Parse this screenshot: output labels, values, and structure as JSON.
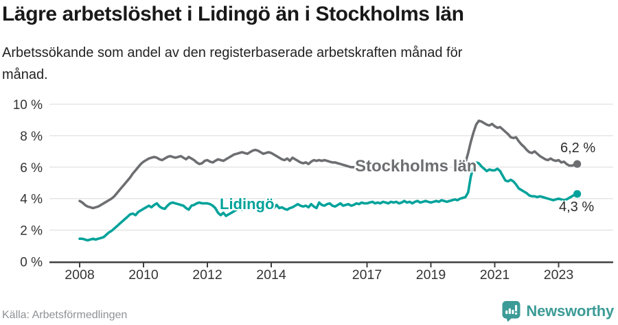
{
  "header": {
    "title": "Lägre arbetslöshet i Lidingö än i Stockholms län",
    "subtitle_line1": "Arbetssökande som andel av den registerbaserade arbetskraften månad för",
    "subtitle_line2": "månad."
  },
  "footer": {
    "source": "Källa: Arbetsförmedlingen",
    "brand": "Newsworthy"
  },
  "colors": {
    "stockholm_line": "#6d6e71",
    "lidingo_line": "#00a29a",
    "gridline": "#d9d9d9",
    "axis": "#3f3f41",
    "tick_text": "#333333",
    "end_label_text": "#2b2b2b",
    "source_text": "#8f9194",
    "brand_teal": "#3c9b96",
    "background": "#ffffff"
  },
  "chart_data": {
    "type": "line",
    "title": "Lägre arbetslöshet i Lidingö än i Stockholms län",
    "subtitle": "Arbetssökande som andel av den registerbaserade arbetskraften månad för månad.",
    "x_unit": "month",
    "x_start": "2008-01",
    "x_end": "2023-08",
    "ylim": [
      0,
      10.4
    ],
    "grid": true,
    "legend_position": "inline-labels",
    "y_ticks": [
      {
        "value": 0,
        "label": "0 %"
      },
      {
        "value": 2,
        "label": "2 %"
      },
      {
        "value": 4,
        "label": "4 %"
      },
      {
        "value": 6,
        "label": "6 %"
      },
      {
        "value": 8,
        "label": "8 %"
      },
      {
        "value": 10,
        "label": "10 %"
      }
    ],
    "x_ticks": [
      {
        "year": 2008,
        "label": "2008"
      },
      {
        "year": 2010,
        "label": "2010"
      },
      {
        "year": 2012,
        "label": "2012"
      },
      {
        "year": 2014,
        "label": "2014"
      },
      {
        "year": 2017,
        "label": "2017"
      },
      {
        "year": 2019,
        "label": "2019"
      },
      {
        "year": 2021,
        "label": "2021"
      },
      {
        "year": 2023,
        "label": "2023"
      }
    ],
    "series": [
      {
        "name": "Stockholms län",
        "color": "#6d6e71",
        "end_label": "6,2 %",
        "end_value": 6.2,
        "note": "line hidden behind series label from 2016-09 to 2020-01 (nulls)",
        "values": [
          3.85,
          3.75,
          3.6,
          3.5,
          3.45,
          3.4,
          3.45,
          3.5,
          3.6,
          3.7,
          3.8,
          3.9,
          4.0,
          4.15,
          4.35,
          4.55,
          4.75,
          4.95,
          5.15,
          5.35,
          5.6,
          5.8,
          6.0,
          6.2,
          6.35,
          6.45,
          6.55,
          6.6,
          6.65,
          6.6,
          6.5,
          6.45,
          6.55,
          6.65,
          6.7,
          6.65,
          6.6,
          6.65,
          6.7,
          6.6,
          6.5,
          6.65,
          6.55,
          6.45,
          6.3,
          6.2,
          6.25,
          6.4,
          6.45,
          6.35,
          6.3,
          6.4,
          6.5,
          6.45,
          6.4,
          6.5,
          6.6,
          6.7,
          6.8,
          6.85,
          6.9,
          6.95,
          6.9,
          6.85,
          6.95,
          7.05,
          7.1,
          7.05,
          6.95,
          6.85,
          6.9,
          6.95,
          6.9,
          6.8,
          6.7,
          6.6,
          6.5,
          6.45,
          6.55,
          6.4,
          6.6,
          6.5,
          6.4,
          6.3,
          6.25,
          6.3,
          6.2,
          6.35,
          6.45,
          6.4,
          6.45,
          6.4,
          6.45,
          6.4,
          6.35,
          6.3,
          6.3,
          6.25,
          6.2,
          6.15,
          6.1,
          6.05,
          6.0,
          6.0,
          null,
          null,
          null,
          null,
          null,
          null,
          null,
          null,
          null,
          null,
          null,
          null,
          null,
          null,
          null,
          null,
          null,
          null,
          null,
          null,
          null,
          null,
          null,
          null,
          null,
          null,
          null,
          null,
          null,
          null,
          null,
          null,
          null,
          null,
          null,
          null,
          null,
          null,
          null,
          null,
          null,
          6.3,
          6.9,
          7.6,
          8.2,
          8.7,
          8.95,
          8.9,
          8.8,
          8.7,
          8.65,
          8.75,
          8.6,
          8.5,
          8.55,
          8.4,
          8.25,
          8.1,
          7.9,
          7.85,
          7.9,
          7.65,
          7.45,
          7.3,
          7.1,
          6.95,
          6.9,
          7.0,
          6.85,
          6.7,
          6.6,
          6.5,
          6.45,
          6.55,
          6.45,
          6.4,
          6.45,
          6.3,
          6.35,
          6.2,
          6.1,
          6.1,
          6.15,
          6.2
        ]
      },
      {
        "name": "Lidingö",
        "color": "#00a29a",
        "end_label": "4,3 %",
        "end_value": 4.3,
        "values": [
          1.45,
          1.45,
          1.4,
          1.35,
          1.4,
          1.45,
          1.4,
          1.45,
          1.5,
          1.55,
          1.7,
          1.85,
          1.95,
          2.1,
          2.25,
          2.4,
          2.55,
          2.7,
          2.85,
          3.0,
          3.05,
          2.95,
          3.15,
          3.25,
          3.35,
          3.45,
          3.55,
          3.45,
          3.6,
          3.7,
          3.5,
          3.4,
          3.35,
          3.55,
          3.7,
          3.75,
          3.7,
          3.65,
          3.6,
          3.55,
          3.4,
          3.3,
          3.55,
          3.6,
          3.7,
          3.75,
          3.7,
          3.7,
          3.7,
          3.65,
          3.55,
          3.4,
          3.1,
          2.95,
          3.1,
          2.9,
          3.0,
          3.1,
          3.2,
          3.3,
          3.35,
          3.3,
          3.4,
          3.35,
          3.45,
          3.5,
          3.55,
          3.45,
          3.5,
          3.55,
          3.45,
          3.4,
          3.45,
          3.4,
          3.6,
          3.4,
          3.45,
          3.35,
          3.3,
          3.4,
          3.45,
          3.55,
          3.65,
          3.55,
          3.5,
          3.55,
          3.45,
          3.65,
          3.5,
          3.4,
          3.75,
          3.6,
          3.55,
          3.65,
          3.7,
          3.55,
          3.5,
          3.6,
          3.7,
          3.55,
          3.6,
          3.65,
          3.55,
          3.6,
          3.7,
          3.65,
          3.75,
          3.7,
          3.7,
          3.75,
          3.8,
          3.7,
          3.75,
          3.7,
          3.8,
          3.75,
          3.7,
          3.8,
          3.75,
          3.8,
          3.7,
          3.75,
          3.85,
          3.75,
          3.8,
          3.7,
          3.8,
          3.85,
          3.75,
          3.8,
          3.85,
          3.8,
          3.75,
          3.8,
          3.85,
          3.8,
          3.9,
          3.85,
          3.8,
          3.85,
          3.9,
          3.95,
          3.9,
          4.0,
          4.05,
          4.1,
          4.4,
          5.4,
          6.0,
          6.3,
          6.25,
          6.05,
          5.9,
          5.75,
          5.85,
          5.8,
          5.8,
          5.9,
          5.75,
          5.45,
          5.15,
          5.1,
          5.2,
          5.1,
          4.9,
          4.65,
          4.55,
          4.45,
          4.35,
          4.2,
          4.15,
          4.15,
          4.1,
          4.15,
          4.1,
          4.05,
          4.0,
          3.95,
          3.9,
          3.95,
          4.0,
          3.95,
          3.9,
          3.95,
          4.05,
          4.15,
          4.25,
          4.3
        ]
      }
    ]
  }
}
